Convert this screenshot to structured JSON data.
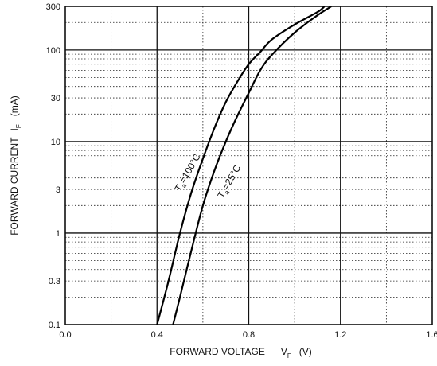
{
  "chart_data": {
    "type": "line",
    "title": "",
    "xlabel": {
      "main": "FORWARD VOLTAGE",
      "symbol": "V",
      "sub": "F",
      "unit": "(V)"
    },
    "ylabel": {
      "main": "FORWARD CURRENT",
      "symbol": "I",
      "sub": "F",
      "unit": "(mA)"
    },
    "xlim": [
      0.0,
      1.6
    ],
    "ylim": [
      0.1,
      300
    ],
    "yscale": "log",
    "xticks": [
      "0.0",
      "0.4",
      "0.8",
      "1.2",
      "1.6"
    ],
    "yticks": [
      "0.1",
      "0.3",
      "1",
      "3",
      "10",
      "30",
      "100",
      "300"
    ],
    "grid": true,
    "series": [
      {
        "name": "Ta=100°C",
        "label_parts": {
          "main": "T",
          "sub": "a",
          "rest": "=100°C"
        },
        "x": [
          0.4,
          0.45,
          0.5,
          0.55,
          0.6,
          0.65,
          0.7,
          0.75,
          0.8,
          0.85,
          0.9,
          1.0,
          1.1,
          1.13
        ],
        "y": [
          0.1,
          0.3,
          1.0,
          2.8,
          6.5,
          14,
          27,
          45,
          70,
          95,
          130,
          190,
          260,
          300
        ]
      },
      {
        "name": "Ta=25°C",
        "label_parts": {
          "main": "T",
          "sub": "a",
          "rest": "=25°C"
        },
        "x": [
          0.47,
          0.5,
          0.55,
          0.6,
          0.65,
          0.7,
          0.75,
          0.8,
          0.85,
          0.9,
          1.0,
          1.1,
          1.16
        ],
        "y": [
          0.1,
          0.2,
          0.65,
          2.0,
          4.8,
          10,
          19,
          34,
          60,
          88,
          155,
          240,
          300
        ]
      }
    ]
  }
}
